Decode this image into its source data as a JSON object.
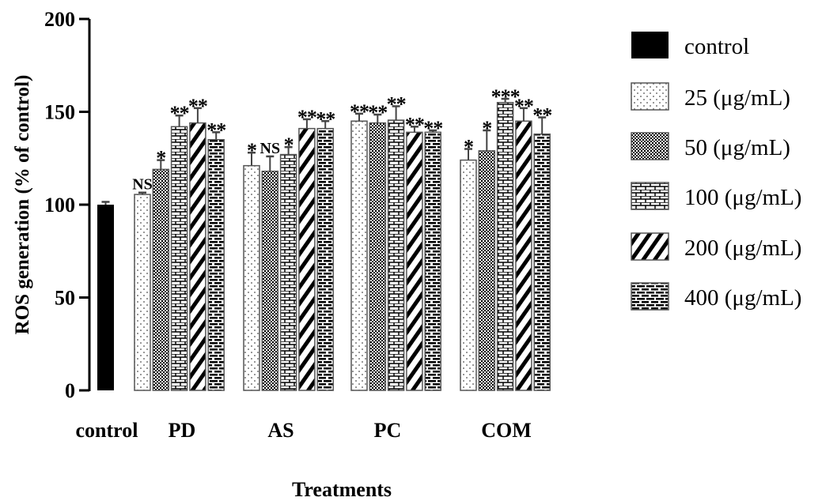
{
  "chart_data": {
    "type": "bar",
    "title": "",
    "xlabel": "Treatments",
    "ylabel": "ROS generation (% of control)",
    "ylim": [
      0,
      200
    ],
    "yticks": [
      "0",
      "50",
      "100",
      "150",
      "200"
    ],
    "grid": false,
    "legend_position": "right",
    "control": {
      "label": "control",
      "value": 100,
      "error": 1.5
    },
    "categories": [
      "PD",
      "AS",
      "PC",
      "COM"
    ],
    "series": [
      {
        "name": "25 (μg/mL)",
        "pattern": "dots",
        "values": [
          105.5,
          121,
          145,
          124
        ],
        "errors": [
          1,
          7,
          4,
          6
        ],
        "annotations": [
          "NS",
          "*",
          "**",
          "*"
        ]
      },
      {
        "name": "50 (μg/mL)",
        "pattern": "checker",
        "values": [
          119,
          118,
          144,
          129
        ],
        "errors": [
          5,
          8,
          4.5,
          11
        ],
        "annotations": [
          "*",
          "NS",
          "**",
          "*"
        ]
      },
      {
        "name": "100 (μg/mL)",
        "pattern": "brick-light",
        "values": [
          142,
          127,
          145.5,
          155
        ],
        "errors": [
          6,
          4,
          7.5,
          2
        ],
        "annotations": [
          "**",
          "*",
          "**",
          "***"
        ]
      },
      {
        "name": "200 (μg/mL)",
        "pattern": "stripes",
        "values": [
          144,
          141,
          139,
          145
        ],
        "errors": [
          8,
          5,
          3,
          7
        ],
        "annotations": [
          "**",
          "**",
          "**",
          "**"
        ]
      },
      {
        "name": "400 (μg/mL)",
        "pattern": "brick-dark",
        "values": [
          135,
          141,
          139,
          138
        ],
        "errors": [
          4,
          4,
          1,
          9
        ],
        "annotations": [
          "**",
          "**",
          "**",
          "**"
        ]
      }
    ]
  }
}
